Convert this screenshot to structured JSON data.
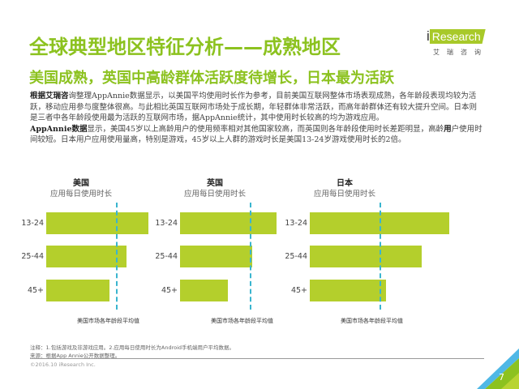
{
  "header": {
    "title": "全球典型地区特征分析——成熟地区",
    "subtitle": "美国成熟，英国中高龄群体活跃度待增长，日本最为活跃"
  },
  "logo": {
    "en_prefix": "i",
    "en_main": "Research",
    "cn": "艾瑞咨询"
  },
  "body": {
    "p1_bold": "根据艾瑞咨",
    "p1": "询整理AppAnnie数据显示，以美国平均使用时长作为参考，目前美国互联网整体市场表现成熟，各年龄段表现均较为活跃，移动应用参与度整体很高。与此相比英国互联网市场处于成长期，年轻群体非常活跃，而高年龄群体还有较大提升空间。日本则是三者中各年龄段使用最为活跃的互联网市场，据AppAnnie统计，其中使用时长较高的均为游戏应用。",
    "p2_bold": "AppAnnie数据",
    "p2a": "显示，美国45岁以上高龄用户的使用频率相对其他国家较高，而英国则各年龄段使用时长差距明显，高龄",
    "p2_bold2": "用",
    "p2b": "户使用时间较短。日本用户应用使用量高，特别是游戏，45岁以上人群的游戏时长是美国13-24岁游戏使用时长的2倍。"
  },
  "chart_data": [
    {
      "type": "bar",
      "title": "美国",
      "subtitle": "应用每日使用时长",
      "categories": [
        "13-24",
        "25-44",
        "45+"
      ],
      "values": [
        1.47,
        1.15,
        0.91
      ],
      "reference": {
        "label": "美国市场各年龄段平均值",
        "value": 1.0
      },
      "unit": "relative to US average"
    },
    {
      "type": "bar",
      "title": "英国",
      "subtitle": "应用每日使用时长",
      "categories": [
        "13-24",
        "25-44",
        "45+"
      ],
      "values": [
        1.38,
        1.03,
        0.69
      ],
      "reference": {
        "label": "美国市场各年龄段平均值",
        "value": 1.0
      },
      "unit": "relative to US average"
    },
    {
      "type": "bar",
      "title": "日本",
      "subtitle": "应用每日使用时长",
      "categories": [
        "13-24",
        "25-44",
        "45+"
      ],
      "values": [
        2.0,
        1.6,
        1.09
      ],
      "reference": {
        "label": "美国市场各年龄段平均值",
        "value": 1.0
      },
      "unit": "relative to US average"
    }
  ],
  "footer": {
    "note": "注释：1.包括游戏及非游戏应用。2.应用每日使用时长为Android手机端用户平均数据。",
    "source": "来源：根据App Annie公开数据整理。",
    "copyright": "©2016.10 iResearch Inc.",
    "page": "7"
  },
  "colors": {
    "accent": "#8cc21f",
    "bar": "#b4cf2c",
    "avg_line": "#3ab5cf"
  }
}
